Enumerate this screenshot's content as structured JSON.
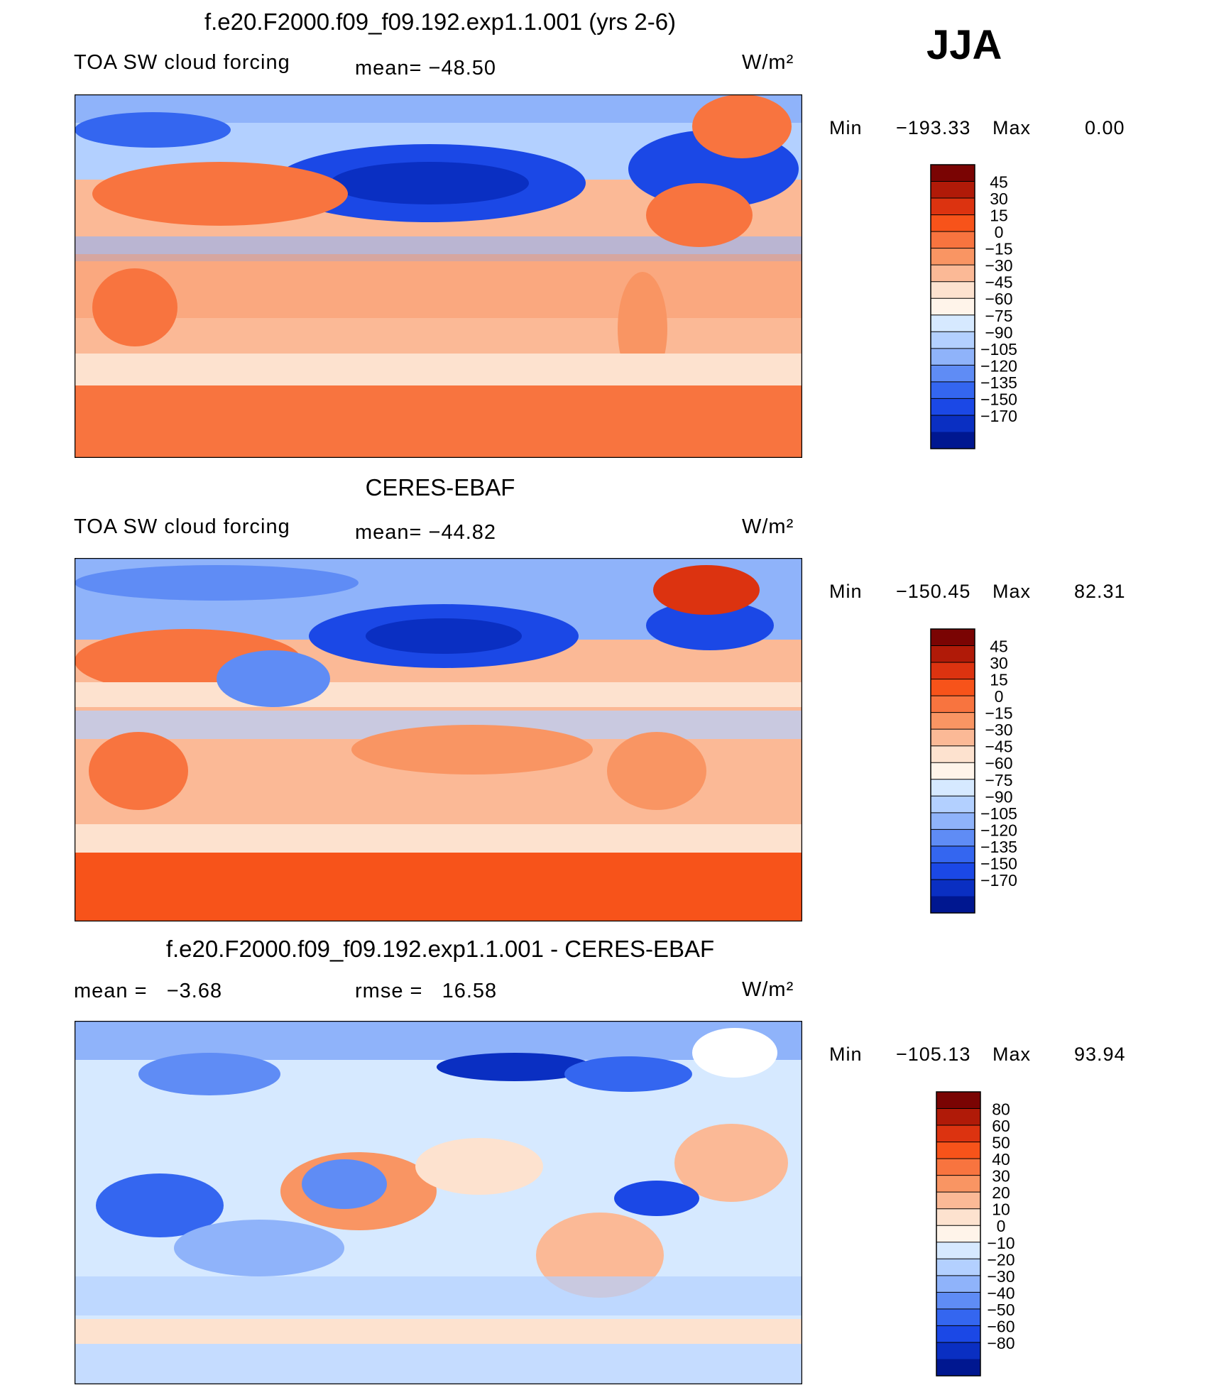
{
  "season_label": "JJA",
  "panels": [
    {
      "title": "f.e20.F2000.f09_f09.192.exp1.1.001 (yrs 2-6)",
      "left_label": "TOA SW cloud forcing",
      "center_label": "mean= −48.50",
      "units": "W/m²",
      "min_label": "Min",
      "min_value": "−193.33",
      "max_label": "Max",
      "max_value": "0.00",
      "colorbar_ticks": [
        "45",
        "30",
        "15",
        "0",
        "−15",
        "−30",
        "−45",
        "−60",
        "−75",
        "−90",
        "−105",
        "−120",
        "−135",
        "−150",
        "−170"
      ],
      "colorbar_colors": [
        "#7a0403",
        "#b01a08",
        "#dc3310",
        "#f7531a",
        "#f8743f",
        "#f99563",
        "#fbb996",
        "#fde2cf",
        "#fff4ea",
        "#d6e9ff",
        "#b3d0ff",
        "#8fb3fa",
        "#5f8cf5",
        "#3466f0",
        "#1b48e6",
        "#0a2fc2",
        "#001790"
      ]
    },
    {
      "title": "CERES-EBAF",
      "left_label": "TOA SW cloud forcing",
      "center_label": "mean= −44.82",
      "units": "W/m²",
      "min_label": "Min",
      "min_value": "−150.45",
      "max_label": "Max",
      "max_value": "82.31",
      "colorbar_ticks": [
        "45",
        "30",
        "15",
        "0",
        "−15",
        "−30",
        "−45",
        "−60",
        "−75",
        "−90",
        "−105",
        "−120",
        "−135",
        "−150",
        "−170"
      ],
      "colorbar_colors": [
        "#7a0403",
        "#b01a08",
        "#dc3310",
        "#f7531a",
        "#f8743f",
        "#f99563",
        "#fbb996",
        "#fde2cf",
        "#fff4ea",
        "#d6e9ff",
        "#b3d0ff",
        "#8fb3fa",
        "#5f8cf5",
        "#3466f0",
        "#1b48e6",
        "#0a2fc2",
        "#001790"
      ]
    },
    {
      "title": "f.e20.F2000.f09_f09.192.exp1.1.001 - CERES-EBAF",
      "left_label": "mean =   −3.68",
      "center_label": "rmse =   16.58",
      "units": "W/m²",
      "min_label": "Min",
      "min_value": "−105.13",
      "max_label": "Max",
      "max_value": "93.94",
      "colorbar_ticks": [
        "80",
        "60",
        "50",
        "40",
        "30",
        "20",
        "10",
        "0",
        "−10",
        "−20",
        "−30",
        "−40",
        "−50",
        "−60",
        "−80"
      ],
      "colorbar_colors": [
        "#7a0403",
        "#b01a08",
        "#dc3310",
        "#f7531a",
        "#f8743f",
        "#f99563",
        "#fbb996",
        "#fde2cf",
        "#fff4ea",
        "#d6e9ff",
        "#b3d0ff",
        "#8fb3fa",
        "#5f8cf5",
        "#3466f0",
        "#1b48e6",
        "#0a2fc2",
        "#001790"
      ]
    }
  ],
  "chart_data": [
    {
      "type": "heatmap",
      "title": "f.e20.F2000.f09_f09.192.exp1.1.001 (yrs 2-6)",
      "variable": "TOA SW cloud forcing",
      "units": "W/m2",
      "mean": -48.5,
      "min": -193.33,
      "max": 0.0,
      "levels": [
        -170,
        -150,
        -135,
        -120,
        -105,
        -90,
        -75,
        -60,
        -45,
        -30,
        -15,
        0,
        15,
        30,
        45
      ]
    },
    {
      "type": "heatmap",
      "title": "CERES-EBAF",
      "variable": "TOA SW cloud forcing",
      "units": "W/m2",
      "mean": -44.82,
      "min": -150.45,
      "max": 82.31,
      "levels": [
        -170,
        -150,
        -135,
        -120,
        -105,
        -90,
        -75,
        -60,
        -45,
        -30,
        -15,
        0,
        15,
        30,
        45
      ]
    },
    {
      "type": "heatmap",
      "title": "f.e20.F2000.f09_f09.192.exp1.1.001 - CERES-EBAF",
      "units": "W/m2",
      "mean": -3.68,
      "rmse": 16.58,
      "min": -105.13,
      "max": 93.94,
      "levels": [
        -80,
        -60,
        -50,
        -40,
        -30,
        -20,
        -10,
        0,
        10,
        20,
        30,
        40,
        50,
        60,
        80
      ]
    }
  ]
}
